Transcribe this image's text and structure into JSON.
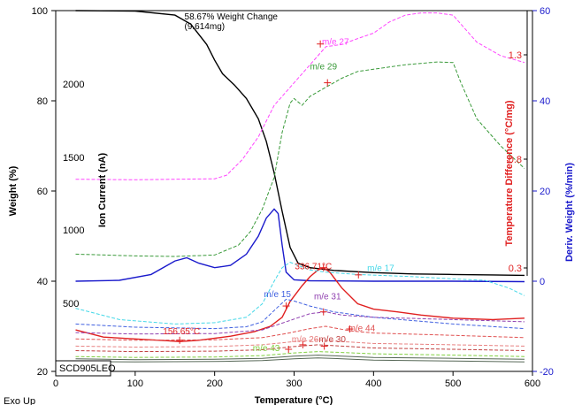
{
  "chart_data": {
    "type": "line",
    "xlabel": "Temperature (°C)",
    "footer_left": "Exo Up",
    "sample_label": "SCD905LEO",
    "x_ticks": [
      0,
      100,
      200,
      300,
      400,
      500,
      600
    ],
    "xlim": [
      0,
      600
    ],
    "axes": {
      "weight": {
        "label": "Weight (%)",
        "ticks": [
          20,
          40,
          60,
          80,
          100
        ],
        "ylim": [
          20,
          100
        ]
      },
      "ion_current": {
        "label": "Ion Current (nA)",
        "ticks": [
          500,
          1000,
          1500,
          2000
        ]
      },
      "temp_diff": {
        "label": "Temperature Difference (°C/mg)",
        "ticks": [
          0.3,
          0.8,
          1.3
        ]
      },
      "deriv_weight": {
        "label": "Deriv. Weight (%/min)",
        "ticks": [
          -20,
          0,
          20,
          40,
          60
        ],
        "ylim": [
          -20,
          60
        ]
      }
    },
    "colors": {
      "weight": "#000000",
      "deriv_weight": "#1a1acc",
      "temp_diff": "#e02020",
      "me27": "#ff44ff",
      "me29": "#3a9a3a",
      "me17": "#44d8e8",
      "me15": "#4060e0",
      "me31": "#9040b0",
      "me44": "#e05050",
      "me26": "#e88080",
      "me30": "#c04040",
      "me43": "#80d040",
      "right_axis_red": "#e02020",
      "right_axis_blue": "#1a1acc"
    },
    "series": [
      {
        "id": "weight",
        "style": "solid",
        "axis": "weight",
        "x": [
          25,
          100,
          150,
          170,
          190,
          200,
          210,
          225,
          240,
          255,
          265,
          275,
          285,
          295,
          305,
          320,
          350,
          400,
          450,
          500,
          550,
          590
        ],
        "y": [
          100,
          99.9,
          99.0,
          97.0,
          92.5,
          89.0,
          86.0,
          83.5,
          80.5,
          76.0,
          71.0,
          64.0,
          55.5,
          47.5,
          44.0,
          43.0,
          42.4,
          41.9,
          41.6,
          41.5,
          41.4,
          41.3
        ]
      },
      {
        "id": "deriv_weight",
        "style": "solid",
        "axis": "deriv_weight",
        "x": [
          25,
          80,
          120,
          150,
          165,
          180,
          200,
          220,
          240,
          255,
          265,
          275,
          280,
          285,
          290,
          300,
          320,
          400,
          500,
          590
        ],
        "y": [
          0.0,
          0.2,
          1.5,
          4.5,
          5.2,
          4.0,
          3.0,
          3.5,
          6.0,
          10.0,
          14.0,
          16.0,
          15.0,
          8.0,
          2.0,
          0.3,
          0.1,
          0.0,
          0.0,
          -0.1
        ]
      },
      {
        "id": "temp_diff",
        "style": "solid",
        "axis": "weight",
        "x": [
          25,
          60,
          100,
          140,
          156,
          180,
          220,
          250,
          270,
          285,
          295,
          310,
          320,
          330,
          337,
          345,
          360,
          380,
          400,
          430,
          460,
          500,
          550,
          590
        ],
        "y": [
          29.2,
          27.6,
          27.2,
          26.8,
          26.6,
          26.9,
          27.8,
          28.8,
          30.0,
          32.0,
          35.5,
          39.0,
          41.0,
          42.5,
          43.0,
          42.0,
          38.5,
          35.0,
          33.8,
          33.2,
          32.5,
          31.8,
          31.5,
          31.8
        ]
      },
      {
        "id": "me27",
        "style": "dashed",
        "axis": "weight",
        "x": [
          25,
          100,
          150,
          200,
          215,
          235,
          255,
          275,
          300,
          320,
          340,
          360,
          380,
          400,
          420,
          440,
          460,
          480,
          500,
          510,
          530,
          560,
          590
        ],
        "y": [
          62.6,
          62.5,
          62.6,
          62.7,
          63.5,
          67.0,
          72.0,
          79.0,
          84.0,
          88.0,
          92.0,
          92.5,
          93.8,
          95.0,
          97.5,
          99.0,
          99.5,
          99.5,
          99.0,
          97.0,
          93.0,
          90.0,
          88.5
        ]
      },
      {
        "id": "me29",
        "style": "dashed",
        "axis": "weight",
        "x": [
          25,
          100,
          150,
          200,
          230,
          245,
          260,
          275,
          285,
          295,
          300,
          310,
          320,
          340,
          360,
          380,
          400,
          440,
          480,
          500,
          510,
          530,
          560,
          590
        ],
        "y": [
          46.0,
          45.6,
          45.5,
          45.8,
          48.0,
          51.0,
          56.0,
          63.0,
          73.0,
          79.5,
          80.5,
          79.0,
          81.0,
          83.0,
          85.0,
          86.5,
          87.0,
          88.0,
          88.6,
          88.5,
          84.0,
          76.0,
          70.0,
          65.0
        ]
      },
      {
        "id": "me17",
        "style": "dashed",
        "axis": "weight",
        "x": [
          25,
          80,
          150,
          200,
          240,
          260,
          275,
          285,
          295,
          305,
          320,
          340,
          380,
          450,
          500,
          540,
          570,
          590
        ],
        "y": [
          34.0,
          31.5,
          30.5,
          30.8,
          32.0,
          35.0,
          40.0,
          43.0,
          44.2,
          43.5,
          42.5,
          42.0,
          41.5,
          41.0,
          40.5,
          40.2,
          38.5,
          36.8
        ]
      },
      {
        "id": "me15",
        "style": "dashed",
        "axis": "weight",
        "x": [
          25,
          100,
          200,
          240,
          260,
          275,
          290,
          300,
          320,
          350,
          400,
          500,
          590
        ],
        "y": [
          30.5,
          29.8,
          29.5,
          29.9,
          31.0,
          33.5,
          36.0,
          35.6,
          34.5,
          33.2,
          32.0,
          30.5,
          29.5
        ]
      },
      {
        "id": "me31",
        "style": "dashed",
        "axis": "weight",
        "x": [
          25,
          100,
          200,
          260,
          290,
          320,
          340,
          360,
          400,
          500,
          590
        ],
        "y": [
          28.6,
          28.3,
          28.4,
          29.2,
          31.0,
          32.8,
          33.2,
          32.5,
          32.0,
          31.5,
          31.0
        ]
      },
      {
        "id": "me44",
        "style": "dashed",
        "axis": "weight",
        "x": [
          25,
          100,
          200,
          260,
          290,
          320,
          340,
          370,
          400,
          500,
          590
        ],
        "y": [
          27.2,
          26.9,
          27.0,
          27.5,
          28.4,
          29.5,
          30.0,
          29.0,
          28.5,
          28.0,
          27.5
        ]
      },
      {
        "id": "me26",
        "style": "dashed",
        "axis": "weight",
        "x": [
          25,
          100,
          200,
          260,
          300,
          330,
          360,
          400,
          500,
          590
        ],
        "y": [
          25.6,
          25.4,
          25.5,
          25.9,
          26.6,
          27.0,
          26.6,
          26.2,
          25.9,
          25.6
        ]
      },
      {
        "id": "me30",
        "style": "dashed",
        "axis": "weight",
        "x": [
          25,
          100,
          200,
          260,
          300,
          330,
          360,
          400,
          500,
          590
        ],
        "y": [
          24.6,
          24.4,
          24.5,
          24.8,
          25.5,
          25.9,
          25.6,
          25.2,
          24.9,
          24.6
        ]
      },
      {
        "id": "me43",
        "style": "dashed",
        "axis": "weight",
        "x": [
          25,
          100,
          200,
          260,
          300,
          330,
          360,
          400,
          500,
          590
        ],
        "y": [
          23.3,
          23.1,
          23.2,
          23.5,
          24.1,
          24.4,
          24.2,
          23.9,
          23.6,
          23.3
        ]
      },
      {
        "id": "baseline_a",
        "style": "solid",
        "axis": "weight",
        "x": [
          25,
          100,
          200,
          260,
          300,
          330,
          360,
          400,
          500,
          590
        ],
        "y": [
          22.8,
          22.6,
          22.7,
          22.9,
          23.4,
          23.6,
          23.4,
          23.1,
          22.9,
          22.7
        ]
      },
      {
        "id": "baseline_b",
        "style": "solid",
        "axis": "weight",
        "x": [
          25,
          100,
          200,
          260,
          300,
          330,
          360,
          400,
          500,
          590
        ],
        "y": [
          22.2,
          22.1,
          22.2,
          22.4,
          22.8,
          23.0,
          22.8,
          22.5,
          22.3,
          22.1
        ]
      }
    ],
    "annotations": [
      {
        "id": "weight-change",
        "line1": "58.67% Weight Change",
        "line2": "(9.614mg)",
        "color": "#000000",
        "at": [
          162,
          98.0
        ]
      },
      {
        "id": "me27",
        "text": "m/e 27",
        "color": "#ff44ff",
        "at": [
          335,
          92.5
        ],
        "marker": [
          333,
          92.6
        ]
      },
      {
        "id": "me29",
        "text": "m/e 29",
        "color": "#3a9a3a",
        "at": [
          320,
          87.0
        ],
        "marker": [
          342,
          84.0
        ]
      },
      {
        "id": "me17",
        "text": "m/e 17",
        "color": "#44d8e8",
        "at": [
          392,
          42.3
        ],
        "marker": [
          381,
          41.4
        ]
      },
      {
        "id": "me15",
        "text": "m/e 15",
        "color": "#4060e0",
        "at": [
          262,
          36.5
        ],
        "marker": [
          290,
          34.5
        ]
      },
      {
        "id": "me31",
        "text": "m/e 31",
        "color": "#9040b0",
        "at": [
          325,
          36.0
        ],
        "marker": [
          337,
          33.2
        ]
      },
      {
        "id": "me44",
        "text": "m/e 44",
        "color": "#e05050",
        "at": [
          368,
          28.9
        ],
        "marker": [
          370,
          29.4
        ]
      },
      {
        "id": "me26",
        "text": "m/e 26",
        "color": "#e88080",
        "at": [
          297,
          26.5
        ],
        "marker": [
          311,
          25.9
        ]
      },
      {
        "id": "me30",
        "text": "m/e 30",
        "color": "#c04040",
        "at": [
          331,
          26.5
        ],
        "marker": [
          338,
          25.6
        ]
      },
      {
        "id": "me43",
        "text": "m/e 43",
        "color": "#80d040",
        "at": [
          248,
          24.5
        ],
        "marker": [
          293,
          24.9
        ]
      },
      {
        "id": "peak-temp",
        "text": "336.71°C",
        "color": "#e02020",
        "at": [
          301,
          42.6
        ],
        "marker": [
          337,
          43.0
        ]
      },
      {
        "id": "min-temp",
        "text": "156.65°C",
        "color": "#e02020",
        "at": [
          135,
          28.2
        ],
        "marker": [
          156,
          26.9
        ]
      }
    ]
  }
}
